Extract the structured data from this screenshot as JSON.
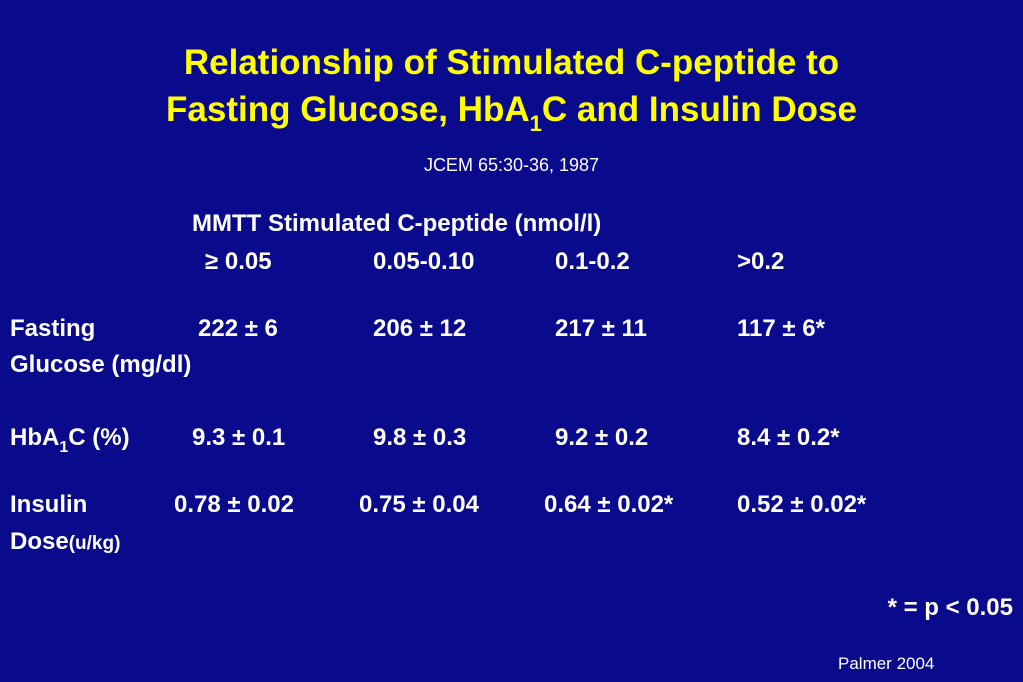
{
  "title": {
    "line1": "Relationship of Stimulated C-peptide to",
    "line2_part1": "Fasting Glucose, HbA",
    "line2_sub": "1",
    "line2_part2": "C and Insulin Dose"
  },
  "citation": "JCEM 65:30-36, 1987",
  "table": {
    "header": "MMTT Stimulated C-peptide (nmol/l)",
    "columns": [
      "≥ 0.05",
      "0.05-0.10",
      "0.1-0.2",
      ">0.2"
    ],
    "rows": [
      {
        "label_line1": "Fasting",
        "label_line2": "Glucose (mg/dl)",
        "values": [
          "222 ± 6",
          "206 ± 12",
          "217 ± 11",
          "117 ± 6*"
        ]
      },
      {
        "label_part1": "HbA",
        "label_sub": "1",
        "label_part2": "C (%)",
        "values": [
          "9.3 ± 0.1",
          "9.8 ± 0.3",
          "9.2 ± 0.2",
          "8.4 ± 0.2*"
        ]
      },
      {
        "label_line1": "Insulin",
        "label_line2": "Dose",
        "label_unit": "(u/kg)",
        "values": [
          "0.78 ± 0.02",
          "0.75 ± 0.04",
          "0.64 ± 0.02*",
          "0.52 ± 0.02*"
        ]
      }
    ]
  },
  "footnote": "* = p < 0.05",
  "source": "Palmer 2004",
  "colors": {
    "background": "#0a0a8c",
    "title": "#ffff00",
    "text": "#ffffff"
  }
}
